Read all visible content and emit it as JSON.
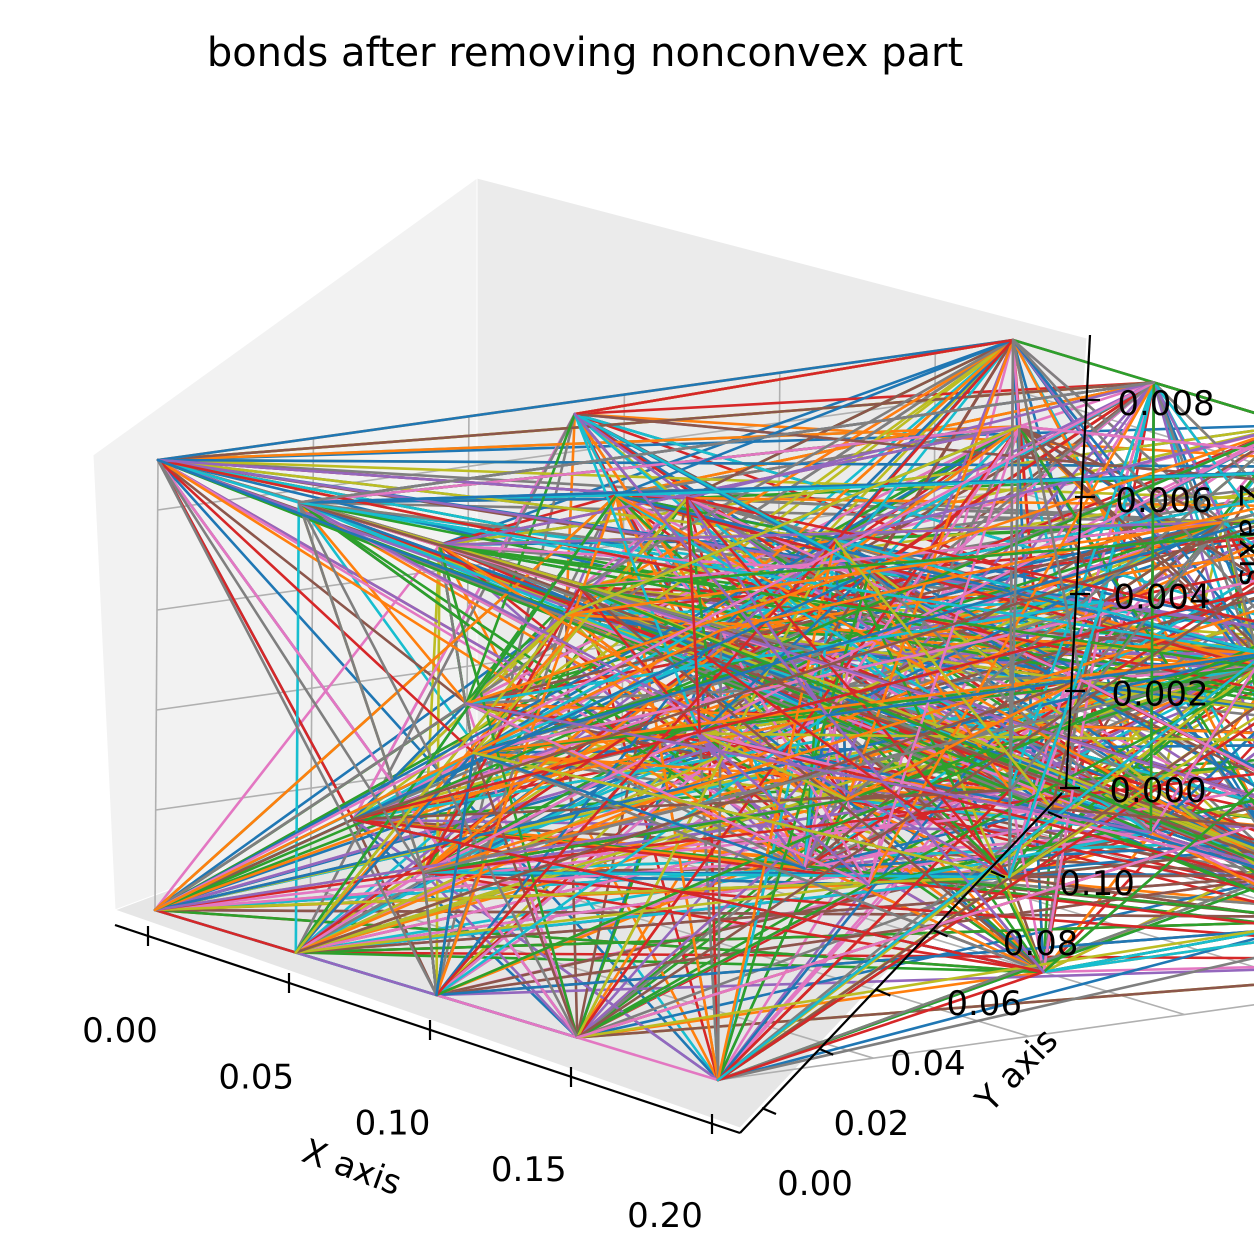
{
  "chart_data": {
    "type": "line3d",
    "title": "bonds after removing nonconvex part",
    "xlabel": "X axis",
    "ylabel": "Y axis",
    "zlabel": "Z axis",
    "xlim": [
      0,
      0.2
    ],
    "ylim": [
      0,
      0.11
    ],
    "zlim": [
      0,
      0.009
    ],
    "x_ticks": [
      "0.00",
      "0.05",
      "0.10",
      "0.15",
      "0.20"
    ],
    "y_ticks": [
      "0.00",
      "0.02",
      "0.04",
      "0.06",
      "0.08",
      "0.10"
    ],
    "z_ticks": [
      "0.000",
      "0.002",
      "0.004",
      "0.006",
      "0.008"
    ],
    "grid": true,
    "palette": [
      "#1f77b4",
      "#ff7f0e",
      "#2ca02c",
      "#d62728",
      "#9467bd",
      "#8c564b",
      "#e377c2",
      "#7f7f7f",
      "#bcbd22",
      "#17becf"
    ],
    "nodes": [
      [
        0.0,
        0.0,
        0.0
      ],
      [
        0.05,
        0.0,
        0.0
      ],
      [
        0.1,
        0.0,
        0.0
      ],
      [
        0.15,
        0.0,
        0.0
      ],
      [
        0.2,
        0.0,
        0.0
      ],
      [
        0.0,
        0.11,
        0.0
      ],
      [
        0.05,
        0.11,
        0.0
      ],
      [
        0.1,
        0.11,
        0.0
      ],
      [
        0.15,
        0.11,
        0.0
      ],
      [
        0.2,
        0.11,
        0.0
      ],
      [
        0.0,
        0.0,
        0.009
      ],
      [
        0.05,
        0.0,
        0.009
      ],
      [
        0.1,
        0.0,
        0.009
      ],
      [
        0.15,
        0.0,
        0.009
      ],
      [
        0.2,
        0.0,
        0.009
      ],
      [
        0.0,
        0.11,
        0.009
      ],
      [
        0.05,
        0.11,
        0.009
      ],
      [
        0.1,
        0.11,
        0.009
      ],
      [
        0.15,
        0.11,
        0.009
      ],
      [
        0.2,
        0.11,
        0.009
      ],
      [
        0.03,
        0.03,
        0.003
      ],
      [
        0.07,
        0.06,
        0.005
      ],
      [
        0.12,
        0.04,
        0.002
      ],
      [
        0.17,
        0.08,
        0.006
      ],
      [
        0.08,
        0.09,
        0.004
      ],
      [
        0.14,
        0.02,
        0.007
      ],
      [
        0.05,
        0.05,
        0.008
      ],
      [
        0.11,
        0.07,
        0.001
      ],
      [
        0.18,
        0.05,
        0.004
      ],
      [
        0.02,
        0.08,
        0.006
      ],
      [
        0.09,
        0.02,
        0.007
      ],
      [
        0.16,
        0.1,
        0.002
      ],
      [
        0.06,
        0.1,
        0.005
      ],
      [
        0.13,
        0.09,
        0.008
      ],
      [
        0.04,
        0.02,
        0.001
      ],
      [
        0.19,
        0.02,
        0.005
      ],
      [
        0.1,
        0.05,
        0.0045
      ],
      [
        0.07,
        0.0,
        0.003
      ],
      [
        0.15,
        0.06,
        0.0
      ],
      [
        0.01,
        0.05,
        0.009
      ],
      [
        0.12,
        0.11,
        0.005
      ],
      [
        0.0,
        0.07,
        0.002
      ],
      [
        0.2,
        0.07,
        0.007
      ],
      [
        0.08,
        0.03,
        0.009
      ],
      [
        0.14,
        0.1,
        0.0
      ],
      [
        0.03,
        0.1,
        0.008
      ],
      [
        0.17,
        0.03,
        0.009
      ],
      [
        0.11,
        0.0,
        0.006
      ],
      [
        0.06,
        0.07,
        0.0
      ],
      [
        0.18,
        0.11,
        0.004
      ]
    ],
    "bond_count": 1400,
    "bond_seed": 7
  }
}
